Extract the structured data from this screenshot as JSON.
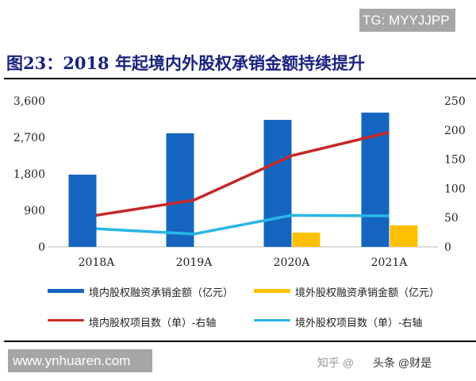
{
  "watermark_top": "TG: MYYJJPP",
  "watermark_bottom": "www.ynhuaren.com",
  "overlay_text": [
    "知乎 @",
    "头条 @财是"
  ],
  "chart_data": {
    "type": "bar+line",
    "title": "图23：2018 年起境内外股权承销金额持续提升",
    "categories": [
      "2018A",
      "2019A",
      "2020A",
      "2021A"
    ],
    "left_axis": {
      "range": [
        0,
        3600
      ],
      "ticks": [
        "0",
        "900",
        "1,800",
        "2,700",
        "3,600"
      ]
    },
    "right_axis": {
      "range": [
        0,
        250
      ],
      "ticks": [
        "0",
        "50",
        "100",
        "150",
        "200",
        "250"
      ]
    },
    "series": [
      {
        "name": "境内股权融资承销金额（亿元）",
        "type": "bar",
        "axis": "left",
        "color": "#1565c0",
        "values": [
          1780,
          2800,
          3130,
          3310
        ]
      },
      {
        "name": "境外股权融资承销金额（亿元）",
        "type": "bar",
        "axis": "left",
        "color": "#ffc000",
        "values": [
          null,
          null,
          350,
          530
        ]
      },
      {
        "name": "境内股权项目数（单）-右轴",
        "type": "line",
        "axis": "right",
        "color": "#c62828",
        "values": [
          54,
          80,
          156,
          196
        ]
      },
      {
        "name": "境外股权项目数（单）-右轴",
        "type": "line",
        "axis": "right",
        "color": "#29b6e6",
        "values": [
          31,
          22,
          54,
          53
        ]
      }
    ],
    "grid": false,
    "legend_placement": "bottom"
  }
}
